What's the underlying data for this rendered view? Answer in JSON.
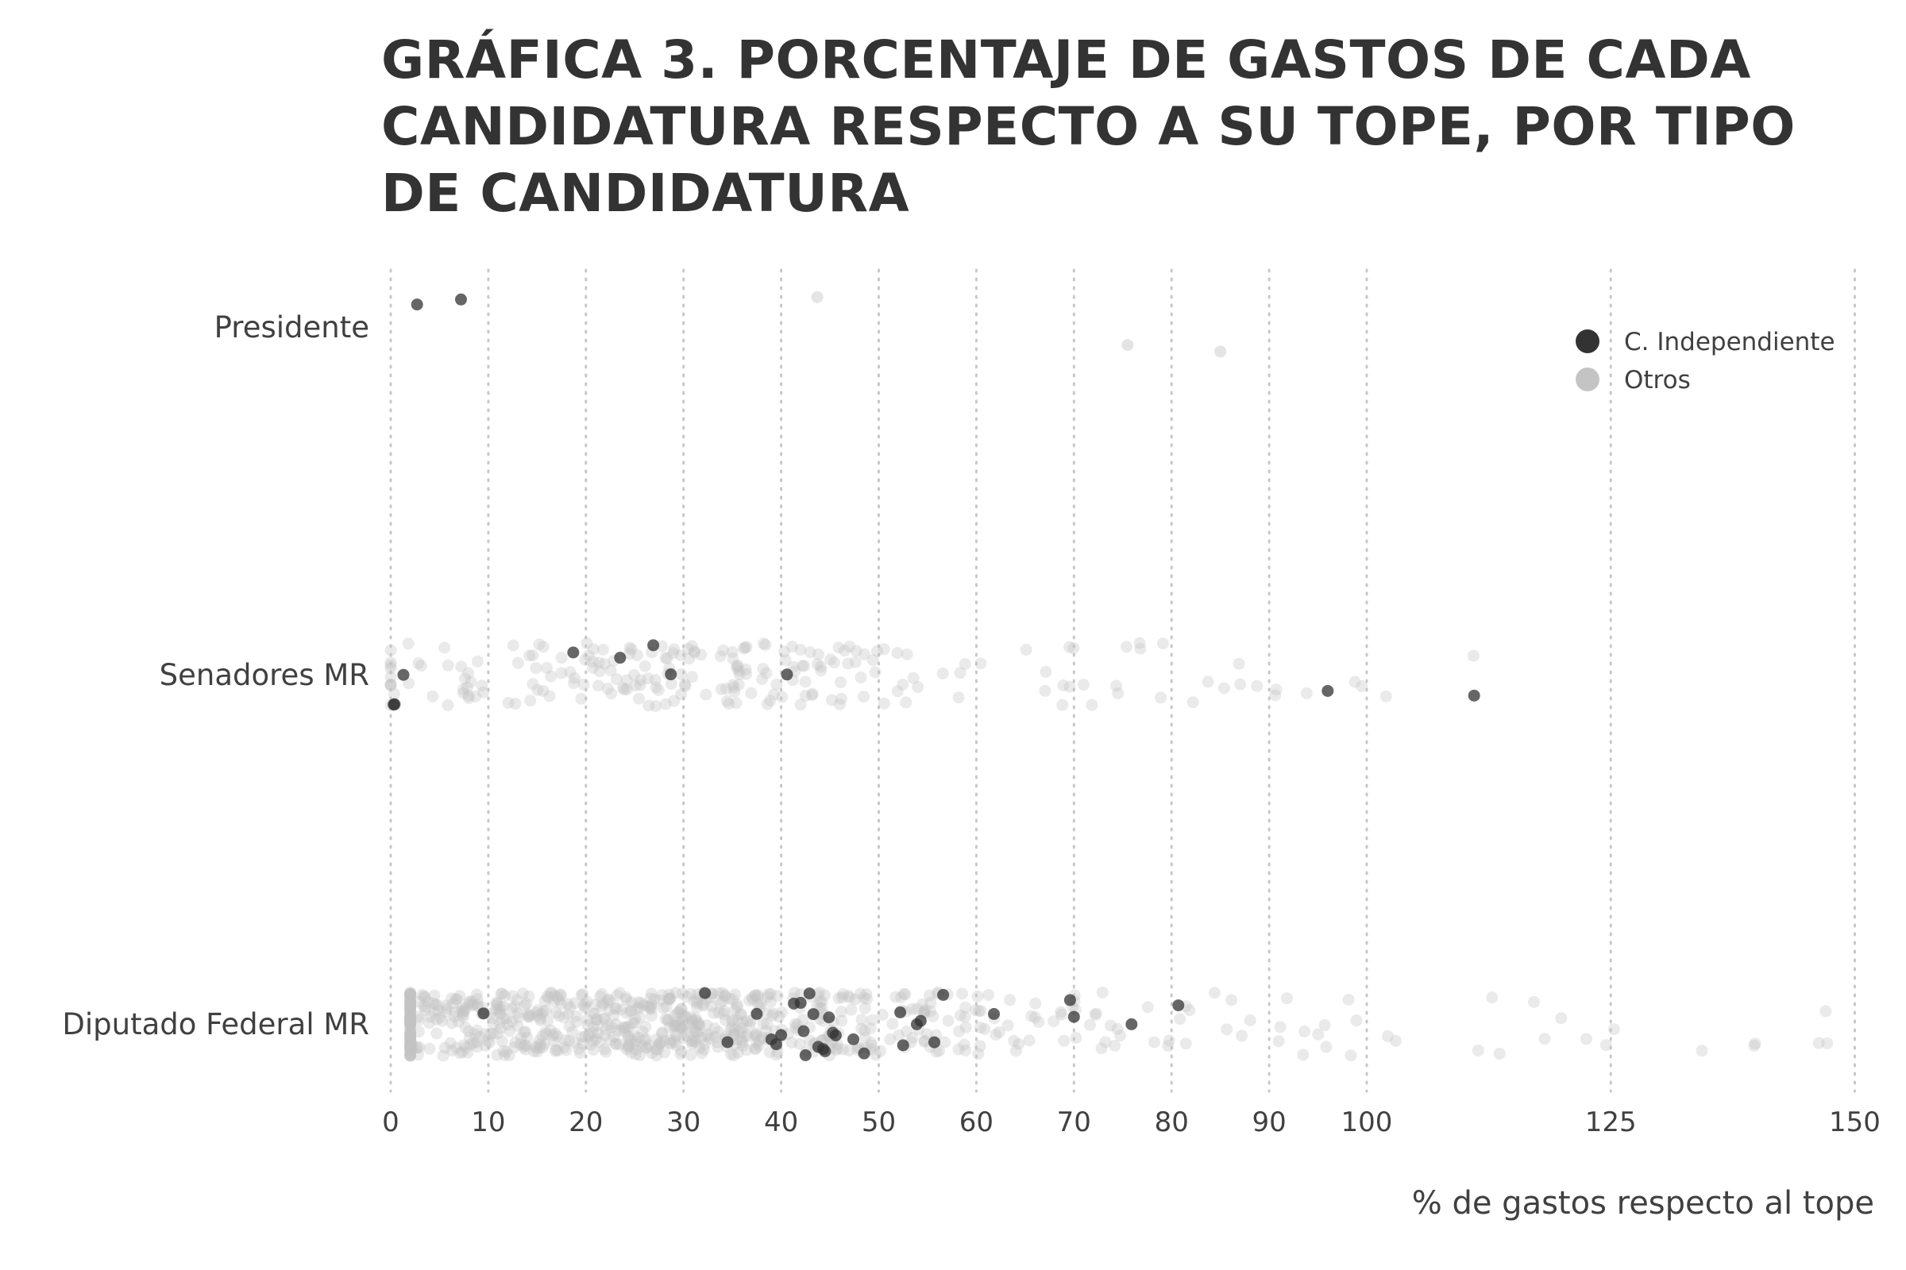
{
  "chart_data": {
    "type": "scatter",
    "title": "GRÁFICA 3. PORCENTAJE DE GASTOS DE CADA CANDIDATURA RESPECTO A SU TOPE, POR TIPO DE CANDIDATURA",
    "xlabel": "% de gastos respecto al tope",
    "ylabel": "",
    "xlim": [
      0,
      150
    ],
    "x_ticks": [
      0,
      10,
      20,
      30,
      40,
      50,
      60,
      70,
      80,
      90,
      100,
      125,
      150
    ],
    "x_tick_labels": [
      "0",
      "10",
      "20",
      "30",
      "40",
      "50",
      "60",
      "70",
      "80",
      "90",
      "100",
      "125",
      "150"
    ],
    "grid": "vertical dotted",
    "legend_placement": "top-right",
    "categories": [
      "Presidente",
      "Senadores MR",
      "Diputado Federal MR"
    ],
    "colors": {
      "independiente": "#333333",
      "otros": "#c4c4c4",
      "grid": "#c8c8c8",
      "text": "#404040"
    },
    "series": [
      {
        "name": "C. Independiente",
        "points": [
          {
            "category": "Presidente",
            "x": 2.7
          },
          {
            "category": "Presidente",
            "x": 7.2
          },
          {
            "category": "Senadores MR",
            "x": 0.3
          },
          {
            "category": "Senadores MR",
            "x": 1.3
          },
          {
            "category": "Senadores MR",
            "x": 0.4
          },
          {
            "category": "Senadores MR",
            "x": 18.7
          },
          {
            "category": "Senadores MR",
            "x": 23.5
          },
          {
            "category": "Senadores MR",
            "x": 26.9
          },
          {
            "category": "Senadores MR",
            "x": 28.7
          },
          {
            "category": "Senadores MR",
            "x": 40.6
          },
          {
            "category": "Senadores MR",
            "x": 96.0
          },
          {
            "category": "Senadores MR",
            "x": 111.0
          },
          {
            "category": "Diputado Federal MR",
            "x": 9.5
          },
          {
            "category": "Diputado Federal MR",
            "x": 32.2
          },
          {
            "category": "Diputado Federal MR",
            "x": 34.5
          },
          {
            "category": "Diputado Federal MR",
            "x": 37.5
          },
          {
            "category": "Diputado Federal MR",
            "x": 39.0
          },
          {
            "category": "Diputado Federal MR",
            "x": 39.5
          },
          {
            "category": "Diputado Federal MR",
            "x": 40.0
          },
          {
            "category": "Diputado Federal MR",
            "x": 41.3
          },
          {
            "category": "Diputado Federal MR",
            "x": 42.0
          },
          {
            "category": "Diputado Federal MR",
            "x": 42.3
          },
          {
            "category": "Diputado Federal MR",
            "x": 42.5
          },
          {
            "category": "Diputado Federal MR",
            "x": 42.9
          },
          {
            "category": "Diputado Federal MR",
            "x": 43.3
          },
          {
            "category": "Diputado Federal MR",
            "x": 43.8
          },
          {
            "category": "Diputado Federal MR",
            "x": 44.3
          },
          {
            "category": "Diputado Federal MR",
            "x": 44.5
          },
          {
            "category": "Diputado Federal MR",
            "x": 44.9
          },
          {
            "category": "Diputado Federal MR",
            "x": 45.3
          },
          {
            "category": "Diputado Federal MR",
            "x": 45.6
          },
          {
            "category": "Diputado Federal MR",
            "x": 47.4
          },
          {
            "category": "Diputado Federal MR",
            "x": 48.5
          },
          {
            "category": "Diputado Federal MR",
            "x": 52.2
          },
          {
            "category": "Diputado Federal MR",
            "x": 52.5
          },
          {
            "category": "Diputado Federal MR",
            "x": 53.9
          },
          {
            "category": "Diputado Federal MR",
            "x": 54.3
          },
          {
            "category": "Diputado Federal MR",
            "x": 55.7
          },
          {
            "category": "Diputado Federal MR",
            "x": 56.6
          },
          {
            "category": "Diputado Federal MR",
            "x": 61.8
          },
          {
            "category": "Diputado Federal MR",
            "x": 69.6
          },
          {
            "category": "Diputado Federal MR",
            "x": 70.0
          },
          {
            "category": "Diputado Federal MR",
            "x": 75.9
          },
          {
            "category": "Diputado Federal MR",
            "x": 80.7
          }
        ]
      },
      {
        "name": "Otros",
        "points": [
          {
            "category": "Presidente",
            "x": 43.7
          },
          {
            "category": "Presidente",
            "x": 75.5
          },
          {
            "category": "Presidente",
            "x": 85.0
          }
        ],
        "bulk": [
          {
            "category": "Senadores MR",
            "count": 230,
            "x_range": [
              0,
              112
            ],
            "mode": 30
          },
          {
            "category": "Diputado Federal MR",
            "count": 800,
            "x_range": [
              2,
              151
            ],
            "mode": 24
          }
        ]
      }
    ]
  }
}
